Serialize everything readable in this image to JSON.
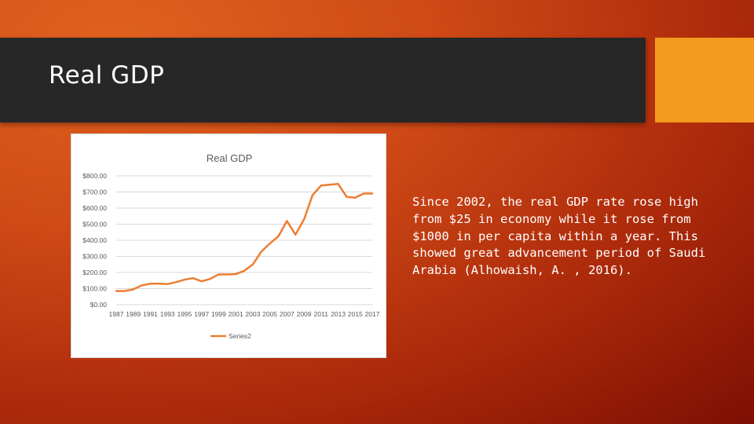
{
  "slide": {
    "title": "Real GDP",
    "body": "Since 2002, the real GDP rate rose high from $25 in economy while it rose from $1000 in per capita within a year. This showed great advancement period of Saudi Arabia (Alhowaish, A. , 2016).",
    "colors": {
      "title_bar": "#272727",
      "accent": "#f39a1f",
      "text": "#ffffff"
    }
  },
  "chart_data": {
    "type": "line",
    "title": "Real GDP",
    "xlabel": "",
    "ylabel": "",
    "ylim": [
      0,
      800
    ],
    "yticks": [
      "$0.00",
      "$100.00",
      "$200.00",
      "$300.00",
      "$400.00",
      "$500.00",
      "$600.00",
      "$700.00",
      "$800.00"
    ],
    "x": [
      1987,
      1988,
      1989,
      1990,
      1991,
      1992,
      1993,
      1994,
      1995,
      1996,
      1997,
      1998,
      1999,
      2000,
      2001,
      2002,
      2003,
      2004,
      2005,
      2006,
      2007,
      2008,
      2009,
      2010,
      2011,
      2012,
      2013,
      2014,
      2015,
      2016,
      2017
    ],
    "xtick_labels": [
      "1987",
      "1989",
      "1991",
      "1993",
      "1995",
      "1997",
      "1999",
      "2001",
      "2003",
      "2005",
      "2007",
      "2009",
      "2011",
      "2013",
      "2015",
      "2017"
    ],
    "series": [
      {
        "name": "Series2",
        "color": "#ed7d31",
        "values": [
          85,
          85,
          95,
          120,
          130,
          130,
          128,
          140,
          155,
          165,
          145,
          160,
          188,
          188,
          190,
          210,
          250,
          330,
          380,
          425,
          520,
          435,
          530,
          680,
          740,
          745,
          750,
          670,
          665,
          690,
          690
        ]
      }
    ],
    "legend_position": "bottom",
    "grid": true
  }
}
